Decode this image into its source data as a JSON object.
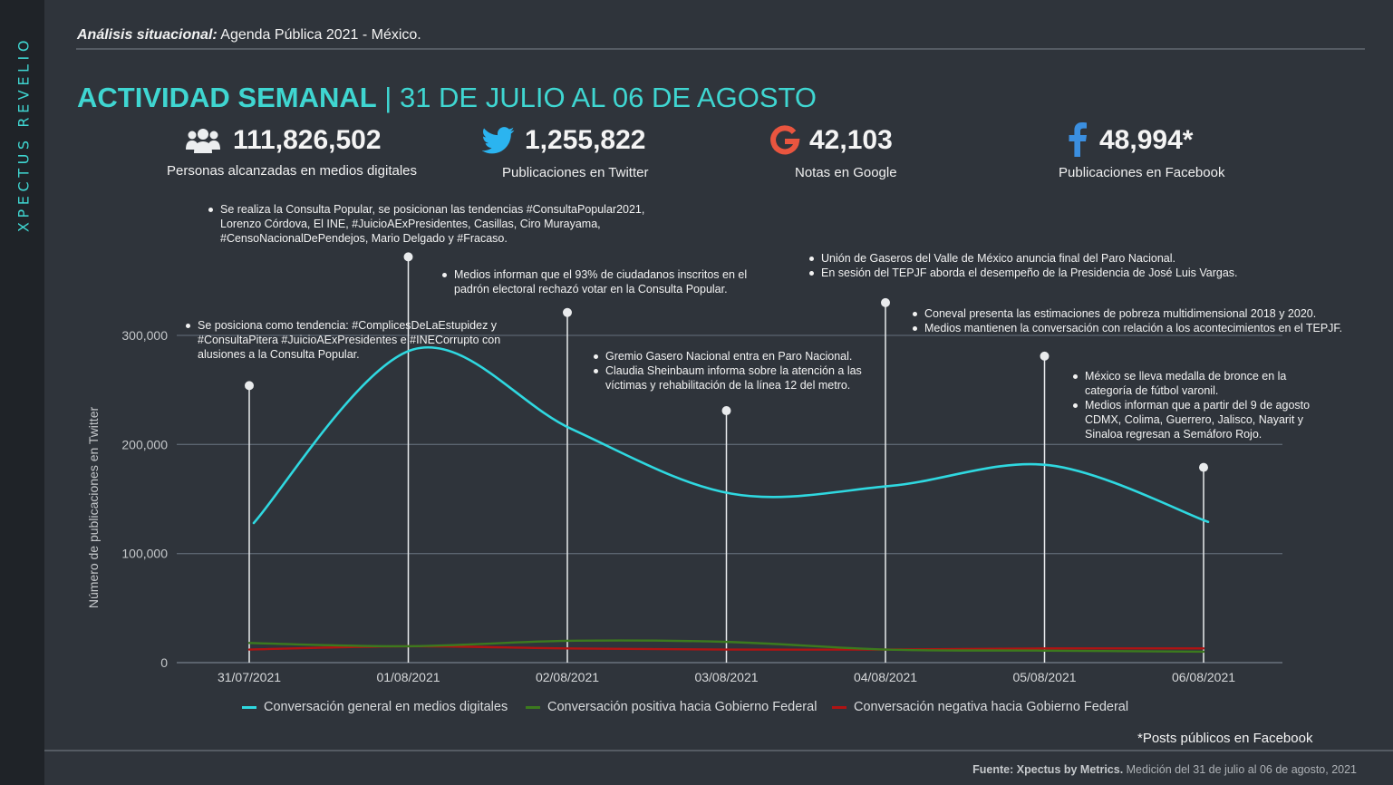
{
  "brand": {
    "side_label": "XPECTUS REVELIO"
  },
  "header": {
    "label_bold": "Análisis situacional:",
    "label_rest": " Agenda Pública 2021 - México.",
    "title_bold": "ACTIVIDAD SEMANAL",
    "title_rest": " | 31 DE JULIO AL 06 DE AGOSTO"
  },
  "kpis": [
    {
      "value": "111,826,502",
      "label": "Personas alcanzadas en medios digitales",
      "icon": "people-group-icon"
    },
    {
      "value": "1,255,822",
      "label": "Publicaciones en Twitter",
      "icon": "twitter-bird-icon"
    },
    {
      "value": "42,103",
      "label": "Notas en Google",
      "icon": "google-g-icon"
    },
    {
      "value": "48,994*",
      "label": "Publicaciones en Facebook",
      "icon": "facebook-f-icon"
    }
  ],
  "colors": {
    "accent": "#3fd6d1",
    "general": "#2fd8e0",
    "positive": "#3c7a1e",
    "negative": "#b01313",
    "background": "#2f343b",
    "grid": "#5b6470"
  },
  "chart_data": {
    "type": "line",
    "categories": [
      "31/07/2021",
      "01/08/2021",
      "02/08/2021",
      "03/08/2021",
      "04/08/2021",
      "05/08/2021",
      "06/08/2021"
    ],
    "series": [
      {
        "name": "Conversación general en medios digitales",
        "values": [
          128000,
          287000,
          214000,
          155000,
          162000,
          181000,
          129000
        ]
      },
      {
        "name": "Conversación positiva hacia Gobierno Federal",
        "values": [
          18000,
          15000,
          20000,
          19000,
          12000,
          11000,
          10000
        ]
      },
      {
        "name": "Conversación negativa hacia Gobierno Federal",
        "values": [
          12000,
          15000,
          13000,
          12000,
          12000,
          13000,
          13000
        ]
      }
    ],
    "ylabel": "Número de publicaciones en Twitter",
    "ylim": [
      0,
      300000
    ],
    "yticks": [
      0,
      100000,
      200000,
      300000
    ],
    "ytick_labels": [
      "0",
      "100,000",
      "200,000",
      "300,000"
    ],
    "grid": true,
    "legend": "bottom",
    "annotations": [
      {
        "date": "31/07/2021",
        "marker_value": 254000,
        "items": [
          "Se posiciona como tendencia: #ComplicesDeLaEstupidez y #ConsultaPitera #JuicioAExPresidentes e #INECorrupto con alusiones a la Consulta Popular."
        ]
      },
      {
        "date": "01/08/2021",
        "marker_value": 372000,
        "items": [
          "Se realiza la Consulta Popular, se posicionan las tendencias #ConsultaPopular2021, Lorenzo Córdova, El INE, #JuicioAExPresidentes, Casillas, Ciro Murayama, #CensoNacionalDePendejos, Mario Delgado y #Fracaso."
        ]
      },
      {
        "date": "02/08/2021",
        "marker_value": 321000,
        "items": [
          "Medios informan que el 93% de ciudadanos inscritos en el padrón electoral rechazó votar en la Consulta Popular."
        ]
      },
      {
        "date": "03/08/2021",
        "marker_value": 231000,
        "items": [
          "Gremio Gasero Nacional entra en Paro Nacional.",
          "Claudia Sheinbaum informa sobre la atención a las víctimas y rehabilitación de la línea 12 del metro."
        ]
      },
      {
        "date": "04/08/2021",
        "marker_value": 330000,
        "items": [
          "Unión de Gaseros del Valle de México anuncia final del Paro Nacional.",
          "En sesión del TEPJF aborda el desempeño de la Presidencia de José Luis Vargas."
        ]
      },
      {
        "date": "05/08/2021",
        "marker_value": 281000,
        "items": [
          "Coneval presenta las estimaciones de pobreza multidimensional 2018 y 2020.",
          "Medios mantienen la conversación con relación a los acontecimientos en el TEPJF."
        ]
      },
      {
        "date": "06/08/2021",
        "marker_value": 179000,
        "items": [
          "México se lleva medalla de bronce en la categoría de fútbol varonil.",
          "Medios informan que a partir del 9 de agosto CDMX, Colima, Guerrero, Jalisco, Nayarit y Sinaloa regresan a Semáforo Rojo."
        ]
      }
    ]
  },
  "footer": {
    "note": "*Posts públicos en Facebook",
    "source_bold": "Fuente: Xpectus by Metrics.",
    "source_rest": " Medición del 31 de julio al 06 de agosto, 2021"
  }
}
